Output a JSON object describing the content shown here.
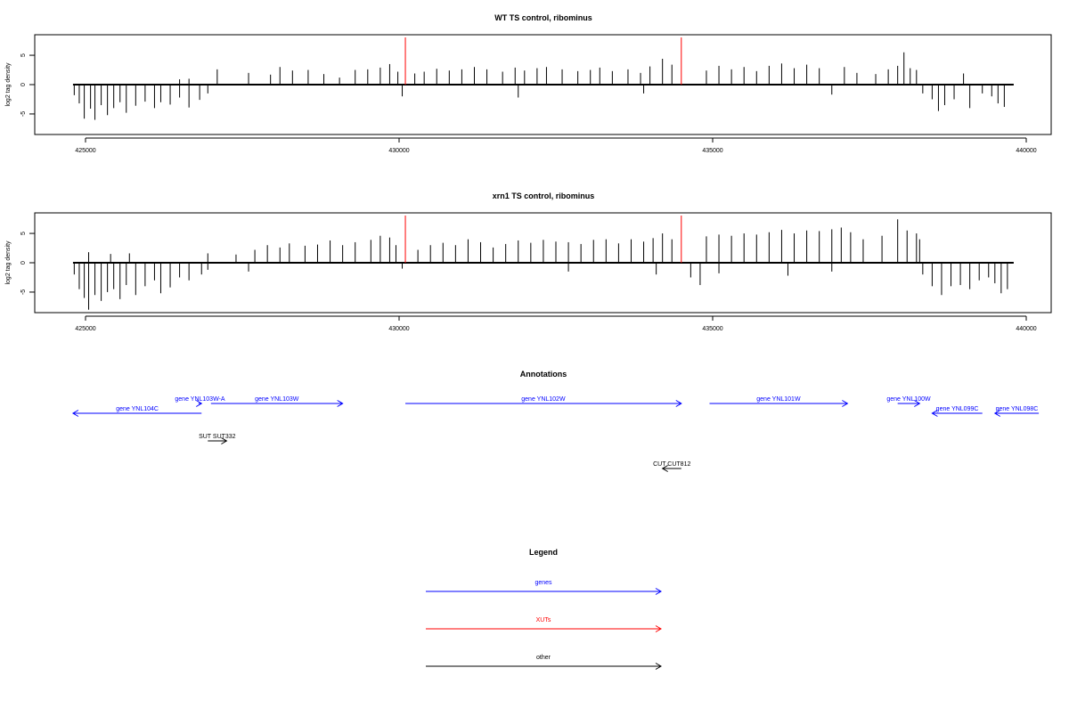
{
  "chart_data": [
    {
      "type": "bar",
      "title": "WT TS control, ribominus",
      "xlabel": "",
      "ylabel": "log2 tag density",
      "xlim": [
        424800,
        440000
      ],
      "ylim": [
        -8.5,
        8.5
      ],
      "xticks": [
        425000,
        430000,
        435000,
        440000
      ],
      "xtick_labels": [
        "425000",
        "430000",
        "435000",
        "440000"
      ],
      "yticks": [
        -5,
        0,
        5
      ],
      "ytick_labels": [
        "-5",
        "0",
        "5"
      ],
      "grid": false,
      "baseline": [
        424800,
        439800
      ],
      "markers": [
        {
          "x": 430100,
          "color": "#ff0000"
        },
        {
          "x": 434500,
          "color": "#ff0000"
        }
      ],
      "series": [
        {
          "values": [
            [
              424820,
              -1.8
            ],
            [
              424900,
              -3.2
            ],
            [
              424980,
              -5.8
            ],
            [
              425080,
              -4.1
            ],
            [
              425150,
              -6.0
            ],
            [
              425250,
              -3.5
            ],
            [
              425350,
              -5.2
            ],
            [
              425450,
              -4.0
            ],
            [
              425550,
              -3.0
            ],
            [
              425650,
              -4.8
            ],
            [
              425800,
              -3.6
            ],
            [
              425950,
              -2.9
            ],
            [
              426100,
              -4.0
            ],
            [
              426200,
              -3.0
            ],
            [
              426350,
              -3.4
            ],
            [
              426500,
              -2.2
            ],
            [
              426650,
              -3.9
            ],
            [
              426820,
              -2.6
            ],
            [
              426950,
              -1.5
            ],
            [
              426500,
              0.9
            ],
            [
              426650,
              1.0
            ],
            [
              427100,
              2.6
            ],
            [
              427600,
              2.0
            ],
            [
              427950,
              1.7
            ],
            [
              428100,
              3.0
            ],
            [
              428300,
              2.4
            ],
            [
              428550,
              2.5
            ],
            [
              428800,
              1.8
            ],
            [
              429050,
              1.2
            ],
            [
              429300,
              2.5
            ],
            [
              429500,
              2.6
            ],
            [
              429700,
              2.9
            ],
            [
              429850,
              3.5
            ],
            [
              429980,
              2.2
            ],
            [
              430050,
              -2.0
            ],
            [
              430250,
              1.9
            ],
            [
              430400,
              2.2
            ],
            [
              430600,
              2.7
            ],
            [
              430800,
              2.4
            ],
            [
              431000,
              2.6
            ],
            [
              431200,
              3.0
            ],
            [
              431400,
              2.6
            ],
            [
              431650,
              2.2
            ],
            [
              431850,
              2.9
            ],
            [
              432000,
              2.4
            ],
            [
              432200,
              2.8
            ],
            [
              432350,
              3.0
            ],
            [
              432600,
              2.6
            ],
            [
              432850,
              2.3
            ],
            [
              433050,
              2.5
            ],
            [
              433200,
              2.9
            ],
            [
              433400,
              2.3
            ],
            [
              433650,
              2.6
            ],
            [
              433850,
              2.0
            ],
            [
              434000,
              3.1
            ],
            [
              434200,
              4.4
            ],
            [
              434350,
              3.4
            ],
            [
              431900,
              -2.2
            ],
            [
              433900,
              -1.5
            ],
            [
              434900,
              2.4
            ],
            [
              435100,
              3.2
            ],
            [
              435300,
              2.6
            ],
            [
              435500,
              3.0
            ],
            [
              435700,
              2.3
            ],
            [
              435900,
              3.2
            ],
            [
              436100,
              3.6
            ],
            [
              436300,
              2.8
            ],
            [
              436500,
              3.4
            ],
            [
              436700,
              2.8
            ],
            [
              436900,
              -1.7
            ],
            [
              437100,
              3.0
            ],
            [
              437300,
              2.0
            ],
            [
              437600,
              1.8
            ],
            [
              437800,
              2.6
            ],
            [
              437950,
              3.2
            ],
            [
              438050,
              5.5
            ],
            [
              438150,
              2.8
            ],
            [
              438250,
              2.5
            ],
            [
              438350,
              -1.5
            ],
            [
              438500,
              -2.5
            ],
            [
              438600,
              -4.5
            ],
            [
              438700,
              -3.5
            ],
            [
              438850,
              -2.5
            ],
            [
              439000,
              1.9
            ],
            [
              439100,
              -4.0
            ],
            [
              439300,
              -1.5
            ],
            [
              439450,
              -2.0
            ],
            [
              439550,
              -3.2
            ],
            [
              439650,
              -3.8
            ]
          ]
        }
      ]
    },
    {
      "type": "bar",
      "title": "xrn1 TS control, ribominus",
      "xlabel": "",
      "ylabel": "log2 tag density",
      "xlim": [
        424800,
        440000
      ],
      "ylim": [
        -8.5,
        8.5
      ],
      "xticks": [
        425000,
        430000,
        435000,
        440000
      ],
      "xtick_labels": [
        "425000",
        "430000",
        "435000",
        "440000"
      ],
      "yticks": [
        -5,
        0,
        5
      ],
      "ytick_labels": [
        "-5",
        "0",
        "5"
      ],
      "grid": false,
      "baseline": [
        424800,
        439800
      ],
      "markers": [
        {
          "x": 430100,
          "color": "#ff0000"
        },
        {
          "x": 434500,
          "color": "#ff0000"
        }
      ],
      "series": [
        {
          "values": [
            [
              424820,
              -2.0
            ],
            [
              424900,
              -4.5
            ],
            [
              424980,
              -6.0
            ],
            [
              425050,
              -8.0
            ],
            [
              425150,
              -5.5
            ],
            [
              425250,
              -6.5
            ],
            [
              425350,
              -5.0
            ],
            [
              425450,
              -4.5
            ],
            [
              425550,
              -6.2
            ],
            [
              425650,
              -3.8
            ],
            [
              425800,
              -5.5
            ],
            [
              425950,
              -4.0
            ],
            [
              426100,
              -3.0
            ],
            [
              426200,
              -5.2
            ],
            [
              426350,
              -4.2
            ],
            [
              426500,
              -2.5
            ],
            [
              426650,
              -3.0
            ],
            [
              426850,
              -2.0
            ],
            [
              426950,
              -1.2
            ],
            [
              425050,
              1.8
            ],
            [
              425400,
              1.5
            ],
            [
              425700,
              1.6
            ],
            [
              426950,
              1.6
            ],
            [
              427400,
              1.4
            ],
            [
              427600,
              -1.5
            ],
            [
              427700,
              2.2
            ],
            [
              427900,
              3.0
            ],
            [
              428100,
              2.6
            ],
            [
              428250,
              3.3
            ],
            [
              428500,
              2.9
            ],
            [
              428700,
              3.1
            ],
            [
              428900,
              3.8
            ],
            [
              429100,
              3.0
            ],
            [
              429300,
              3.5
            ],
            [
              429550,
              3.9
            ],
            [
              429700,
              4.6
            ],
            [
              429850,
              4.3
            ],
            [
              429950,
              3.0
            ],
            [
              430050,
              -1.0
            ],
            [
              430300,
              2.2
            ],
            [
              430500,
              3.0
            ],
            [
              430700,
              3.4
            ],
            [
              430900,
              3.0
            ],
            [
              431100,
              4.0
            ],
            [
              431300,
              3.5
            ],
            [
              431500,
              2.6
            ],
            [
              431700,
              3.2
            ],
            [
              431900,
              3.8
            ],
            [
              432100,
              3.4
            ],
            [
              432300,
              3.9
            ],
            [
              432500,
              3.6
            ],
            [
              432700,
              3.5
            ],
            [
              432900,
              3.2
            ],
            [
              433100,
              3.9
            ],
            [
              433300,
              4.0
            ],
            [
              433500,
              3.3
            ],
            [
              433700,
              4.0
            ],
            [
              433900,
              3.6
            ],
            [
              434050,
              4.2
            ],
            [
              434200,
              5.0
            ],
            [
              434350,
              4.0
            ],
            [
              432700,
              -1.5
            ],
            [
              434100,
              -2.0
            ],
            [
              434650,
              -2.5
            ],
            [
              434800,
              -3.8
            ],
            [
              434900,
              4.5
            ],
            [
              435100,
              4.8
            ],
            [
              435300,
              4.6
            ],
            [
              435500,
              5.0
            ],
            [
              435700,
              4.8
            ],
            [
              435900,
              5.2
            ],
            [
              436100,
              5.6
            ],
            [
              436300,
              5.0
            ],
            [
              436500,
              5.5
            ],
            [
              436700,
              5.4
            ],
            [
              436900,
              5.7
            ],
            [
              437050,
              6.0
            ],
            [
              437200,
              5.2
            ],
            [
              437400,
              4.0
            ],
            [
              437700,
              4.6
            ],
            [
              437950,
              7.4
            ],
            [
              438100,
              5.5
            ],
            [
              438250,
              5.0
            ],
            [
              438300,
              4.0
            ],
            [
              435100,
              -1.8
            ],
            [
              436200,
              -2.2
            ],
            [
              436900,
              -1.5
            ],
            [
              438350,
              -2.0
            ],
            [
              438500,
              -4.0
            ],
            [
              438650,
              -5.5
            ],
            [
              438800,
              -4.0
            ],
            [
              438950,
              -3.8
            ],
            [
              439100,
              -4.5
            ],
            [
              439250,
              -3.0
            ],
            [
              439400,
              -2.5
            ],
            [
              439500,
              -3.5
            ],
            [
              439600,
              -5.2
            ],
            [
              439700,
              -4.5
            ]
          ]
        }
      ]
    }
  ],
  "annotations": {
    "title": "Annotations",
    "genes": [
      {
        "label": "gene YNL104C",
        "start": 426850,
        "end": 424800,
        "dir": "rev",
        "row": 1
      },
      {
        "label": "gene YNL103W-A",
        "start": 426800,
        "end": 426850,
        "dir": "fwd",
        "row": 0
      },
      {
        "label": "gene YNL103W",
        "start": 427000,
        "end": 429100,
        "dir": "fwd",
        "row": 0
      },
      {
        "label": "gene YNL102W",
        "start": 430100,
        "end": 434500,
        "dir": "fwd",
        "row": 0
      },
      {
        "label": "gene YNL101W",
        "start": 434950,
        "end": 437150,
        "dir": "fwd",
        "row": 0
      },
      {
        "label": "gene YNL100W",
        "start": 437950,
        "end": 438300,
        "dir": "fwd",
        "row": 0
      },
      {
        "label": "gene YNL099C",
        "start": 439300,
        "end": 438500,
        "dir": "rev",
        "row": 1
      },
      {
        "label": "gene YNL098C",
        "start": 440200,
        "end": 439500,
        "dir": "rev",
        "row": 1
      }
    ],
    "others": [
      {
        "label": "SUT SUT332",
        "start": 426950,
        "end": 427250,
        "dir": "fwd"
      },
      {
        "label": "CUT CUT812",
        "start": 434500,
        "end": 434200,
        "dir": "rev"
      }
    ]
  },
  "legend": {
    "title": "Legend",
    "items": [
      {
        "label": "genes",
        "color": "#0000ff"
      },
      {
        "label": "XUTs",
        "color": "#ff0000"
      },
      {
        "label": "other",
        "color": "#000000"
      }
    ]
  }
}
